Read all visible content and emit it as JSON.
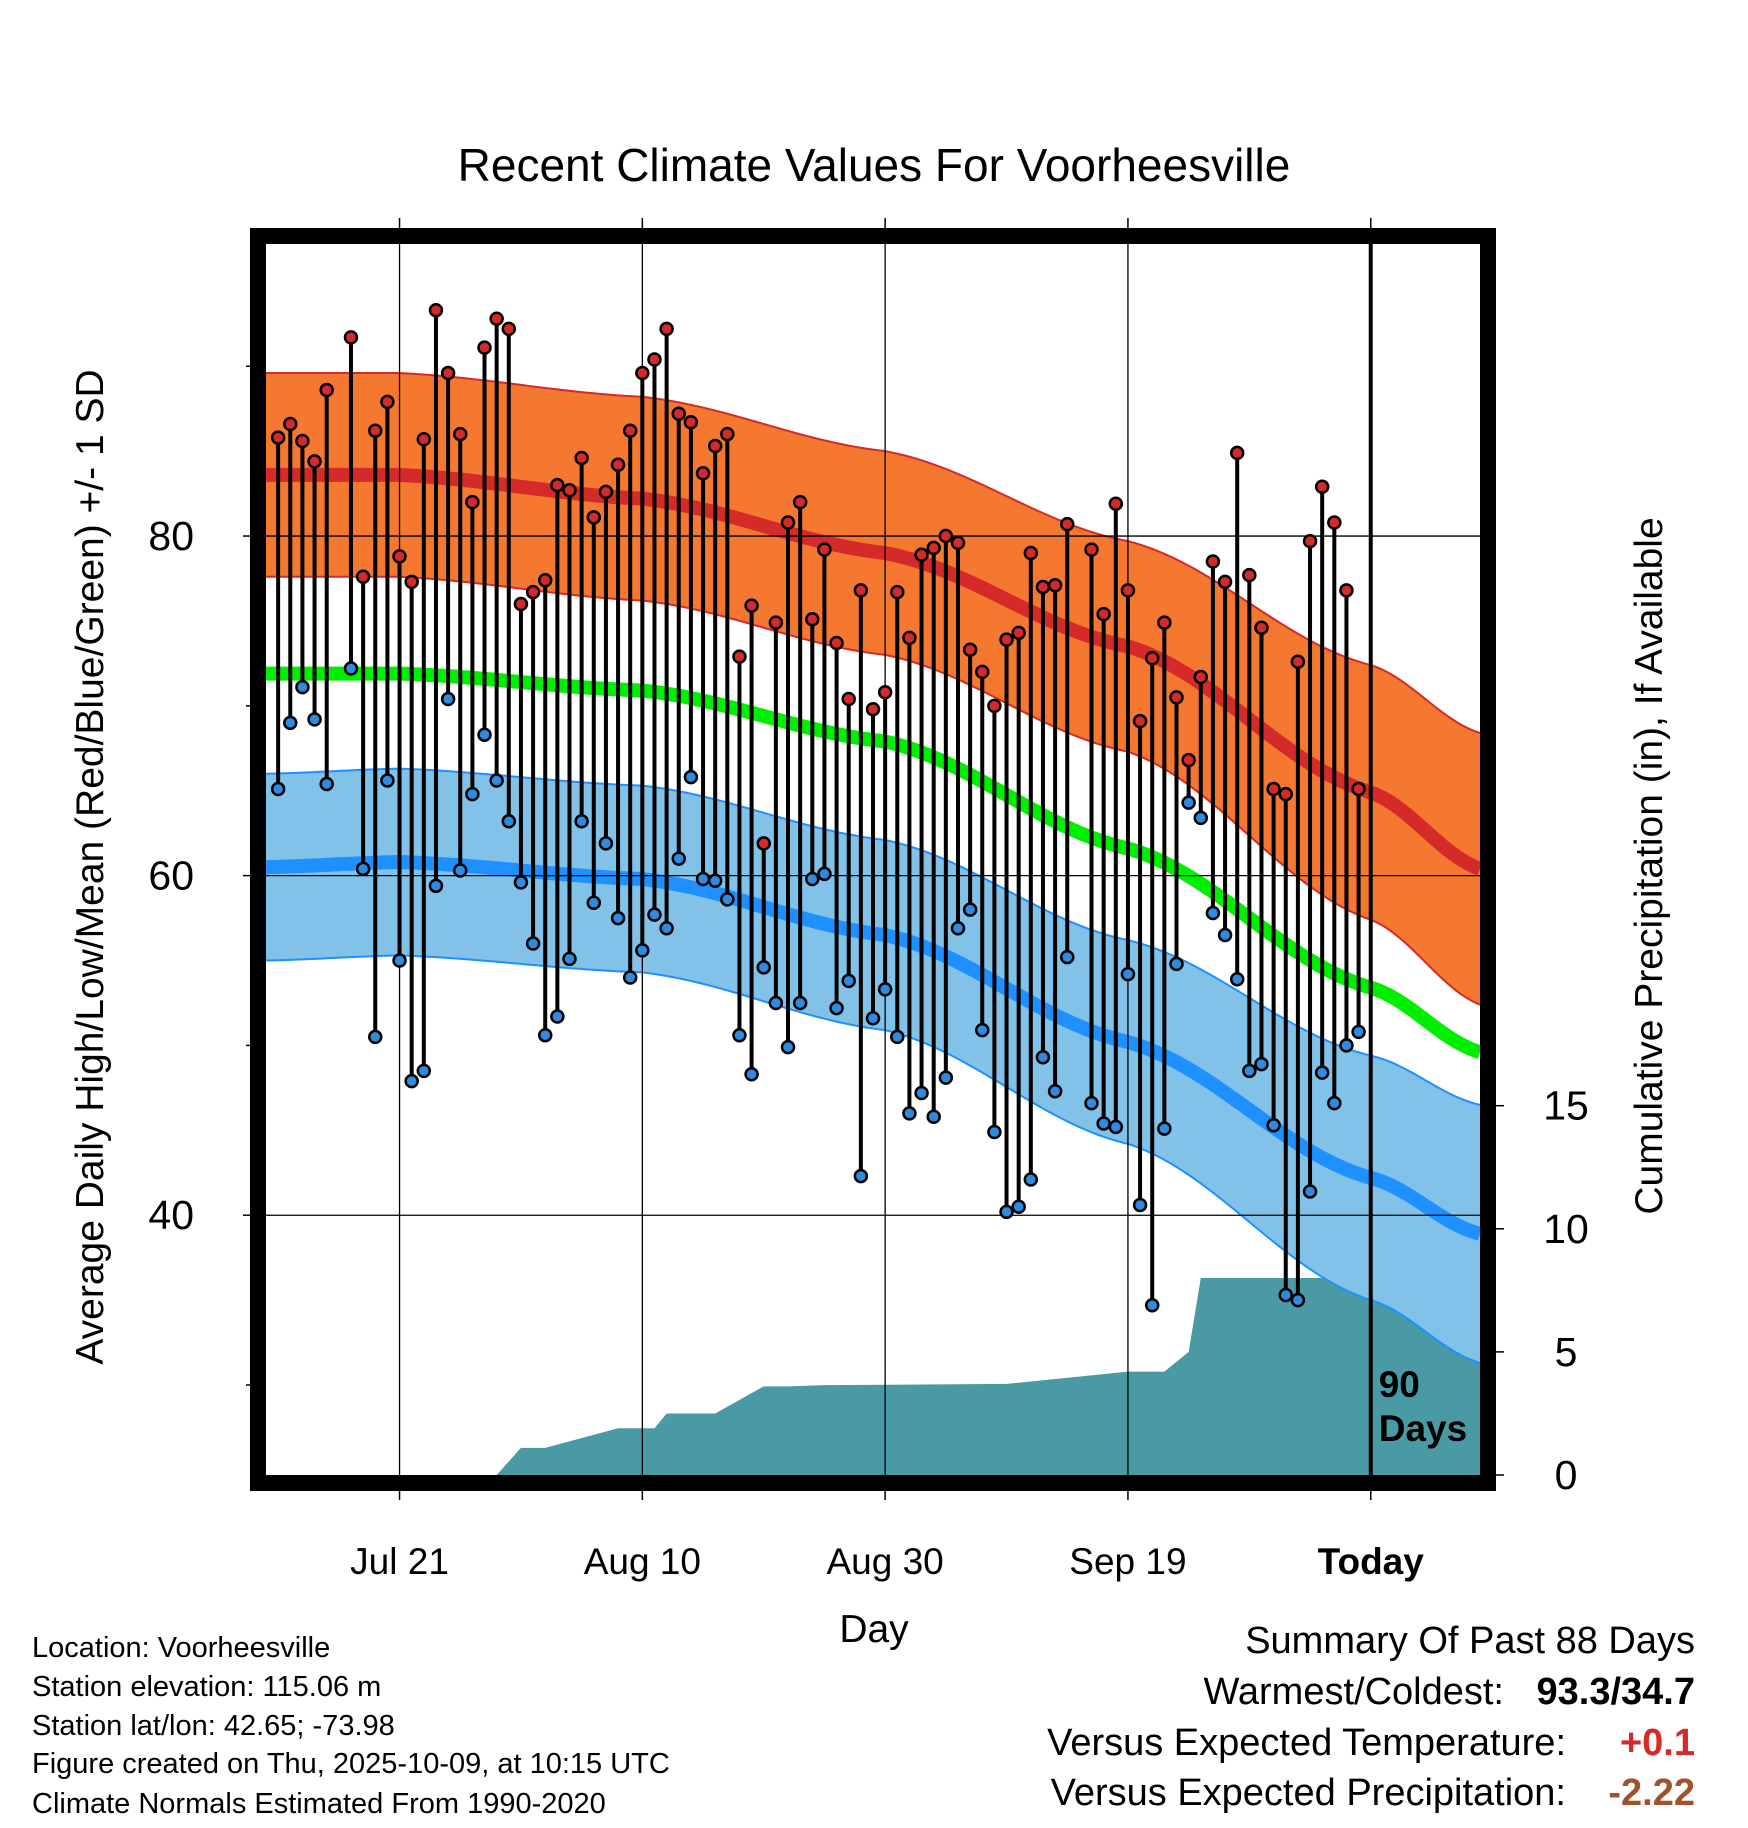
{
  "title": "Recent Climate Values For Voorheesville",
  "y_label_left": "Average Daily High/Low/Mean (Red/Blue/Green) +/- 1 SD",
  "y_label_right": "Cumulative Precipitation (in), If Available",
  "x_label": "Day",
  "marker_label": "90\nDays",
  "info": {
    "location": "Location: Voorheesville",
    "elevation": "Station elevation: 115.06 m",
    "latlon": "Station lat/lon: 42.65; -73.98",
    "created": "Figure created on Thu, 2025-10-09, at 10:15 UTC",
    "normals": "Climate Normals Estimated From 1990-2020"
  },
  "summary": {
    "heading": "Summary Of Past 88 Days",
    "warm_cold_label": "Warmest/Coldest:",
    "warm_cold_value": "93.3/34.7",
    "temp_label": "Versus Expected Temperature:",
    "temp_value": "+0.1",
    "precip_label": "Versus Expected Precipitation:",
    "precip_value": "-2.22"
  },
  "colors": {
    "high_band": "#f47830",
    "high_line": "#d42a2a",
    "low_band": "#82c2e8",
    "low_line": "#1e90ff",
    "mean_line": "#00ee00",
    "precip": "#4a9aa6",
    "high_marker": "#d42a2a",
    "low_marker": "#2e8be0",
    "warm_value": "#000000",
    "temp_value": "#d42a2a",
    "precip_value": "#a0522d"
  },
  "chart_data": {
    "type": "line",
    "x_range_days": [
      -91,
      9
    ],
    "x_ticks": [
      {
        "day": -80,
        "label": "Jul 21",
        "bold": false
      },
      {
        "day": -60,
        "label": "Aug 10",
        "bold": false
      },
      {
        "day": -40,
        "label": "Aug 30",
        "bold": false
      },
      {
        "day": -20,
        "label": "Sep 19",
        "bold": false
      },
      {
        "day": 0,
        "label": "Today",
        "bold": true
      }
    ],
    "y_left": {
      "min": 24.7,
      "max": 97.2,
      "ticks": [
        40,
        60,
        80
      ],
      "minor_ticks": [
        30,
        50,
        70,
        90
      ]
    },
    "y_right": {
      "min": 0,
      "max": 50,
      "ticks": [
        0,
        5,
        10,
        15
      ]
    },
    "normals": {
      "days": [
        -91,
        -80,
        -60,
        -40,
        -20,
        0,
        9
      ],
      "high": [
        83.6,
        83.6,
        82.2,
        79.0,
        73.5,
        64.9,
        60.4
      ],
      "high_sd": [
        6.0,
        6.0,
        6.0,
        6.0,
        6.2,
        7.5,
        8.0
      ],
      "low": [
        60.5,
        60.8,
        59.8,
        56.5,
        50.2,
        42.2,
        38.9
      ],
      "low_sd": [
        5.5,
        5.5,
        5.5,
        5.6,
        6.0,
        7.2,
        7.6
      ],
      "mean": [
        71.9,
        71.9,
        70.9,
        67.9,
        61.6,
        53.4,
        49.6
      ]
    },
    "daily": {
      "start_day": -90,
      "high": [
        85.8,
        86.6,
        85.6,
        84.4,
        88.6,
        null,
        91.7,
        77.6,
        86.2,
        87.9,
        78.8,
        77.3,
        85.7,
        93.3,
        89.6,
        86.0,
        82.0,
        91.1,
        92.8,
        92.2,
        76.0,
        76.7,
        77.4,
        83.0,
        82.7,
        84.6,
        81.1,
        82.6,
        84.2,
        86.2,
        89.6,
        90.4,
        92.2,
        87.2,
        86.7,
        83.7,
        85.3,
        86.0,
        72.9,
        75.9,
        61.9,
        74.9,
        80.8,
        82.0,
        75.1,
        79.2,
        73.7,
        70.4,
        76.8,
        69.8,
        70.8,
        76.7,
        74.0,
        78.9,
        79.3,
        80.0,
        79.6,
        73.3,
        72.0,
        70.0,
        73.9,
        74.3,
        79.0,
        77.0,
        77.1,
        80.7,
        null,
        79.2,
        75.4,
        81.9,
        76.8,
        69.1,
        72.8,
        74.9,
        70.5,
        66.8,
        71.7,
        78.5,
        77.3,
        84.9,
        77.7,
        74.6,
        65.1,
        64.8,
        72.6,
        79.7,
        82.9,
        80.8,
        76.8,
        65.1
      ],
      "low": [
        65.1,
        69.0,
        71.1,
        69.2,
        65.4,
        null,
        72.2,
        60.4,
        50.5,
        65.6,
        55.0,
        47.9,
        48.5,
        59.4,
        70.4,
        60.3,
        64.8,
        68.3,
        65.6,
        63.2,
        59.6,
        56.0,
        50.6,
        51.7,
        55.1,
        63.2,
        58.4,
        61.9,
        57.5,
        54.0,
        55.6,
        57.7,
        56.9,
        61.0,
        65.8,
        59.8,
        59.7,
        58.6,
        50.6,
        48.3,
        54.6,
        52.5,
        49.9,
        52.5,
        59.8,
        60.1,
        52.2,
        53.8,
        42.3,
        51.6,
        53.3,
        50.5,
        46.0,
        47.2,
        45.8,
        48.1,
        56.9,
        58.0,
        50.9,
        44.9,
        40.2,
        40.5,
        42.1,
        49.3,
        47.3,
        55.2,
        null,
        46.6,
        45.4,
        45.2,
        54.2,
        40.6,
        34.7,
        45.1,
        54.8,
        64.3,
        63.4,
        57.8,
        56.5,
        53.9,
        48.5,
        48.9,
        45.3,
        35.3,
        35.0,
        41.4,
        48.4,
        46.6,
        50.0,
        50.8
      ]
    },
    "precip": {
      "days": [
        -91,
        -75,
        -72,
        -70,
        -68,
        -62,
        -59,
        -58,
        -54,
        -50,
        -48,
        -45,
        -30,
        -20,
        -17,
        -15,
        -14,
        -5,
        -3,
        -1.5,
        -0.5,
        9
      ],
      "values": [
        0,
        0,
        0,
        1.1,
        1.1,
        1.9,
        1.9,
        2.5,
        2.5,
        3.6,
        3.6,
        3.65,
        3.7,
        4.2,
        4.2,
        5.0,
        8.0,
        8.0,
        8.0,
        8.2,
        9.3,
        9.3
      ]
    }
  }
}
